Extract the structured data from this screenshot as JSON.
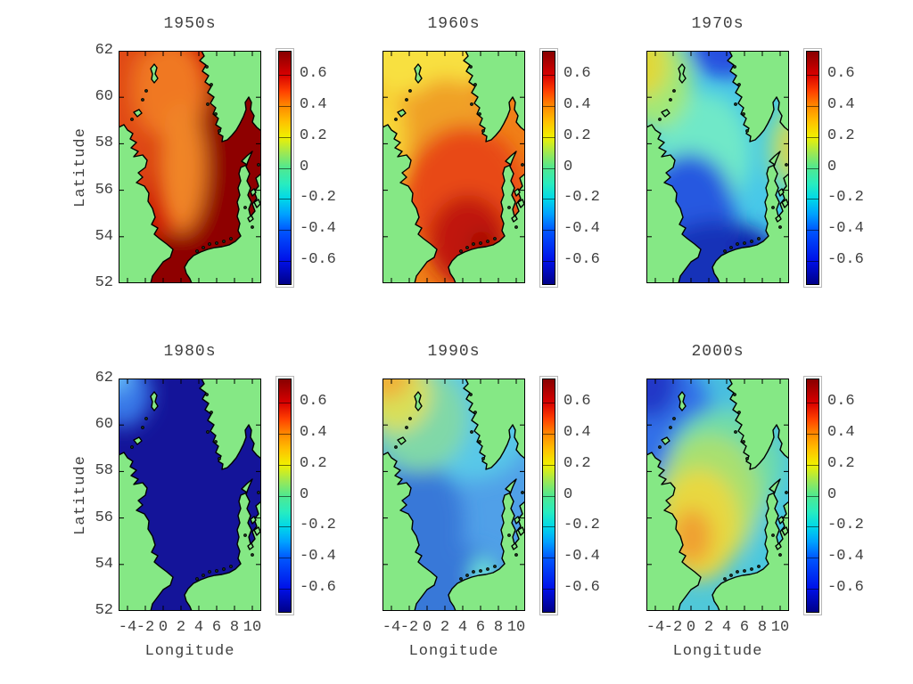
{
  "figure": {
    "background": "#ffffff",
    "description_visible_text_only": true
  },
  "colors": {
    "land": "#85e885",
    "coast": "#000000",
    "frame": "#000000",
    "text": "#404040",
    "background": "#ffffff"
  },
  "axes": {
    "xlabel": "Longitude",
    "ylabel": "Latitude",
    "x_tick_labels": [
      "-4",
      "-2",
      "0",
      "2",
      "4",
      "6",
      "8",
      "10"
    ],
    "y_tick_labels": [
      "62",
      "60",
      "58",
      "56",
      "54",
      "52"
    ]
  },
  "chart_data": {
    "type": "heatmap",
    "layout": "2 rows x 3 columns of decadal anomaly maps of the North Sea, each with its own identical colorbar",
    "xlabel": "Longitude",
    "ylabel": "Latitude",
    "x_ticks": [
      -4,
      -2,
      0,
      2,
      4,
      6,
      8,
      10
    ],
    "y_ticks": [
      62,
      60,
      58,
      56,
      54,
      52
    ],
    "lon_range": [
      -5,
      11
    ],
    "lat_range": [
      52,
      62
    ],
    "colorbar": {
      "range": [
        -0.75,
        0.75
      ],
      "tick_values": [
        0.6,
        0.4,
        0.2,
        0,
        -0.2,
        -0.4,
        -0.6
      ],
      "tick_labels": [
        "0.6",
        "0.4",
        "0.2",
        "0",
        "-0.2",
        "-0.4",
        "-0.6"
      ],
      "gradient_stops": [
        {
          "pos": 0.0,
          "color": "#000088"
        },
        {
          "pos": 0.1,
          "color": "#0010e8"
        },
        {
          "pos": 0.233,
          "color": "#0058ff"
        },
        {
          "pos": 0.3,
          "color": "#00a0ff"
        },
        {
          "pos": 0.367,
          "color": "#00d8e8"
        },
        {
          "pos": 0.43,
          "color": "#28ecc0"
        },
        {
          "pos": 0.5,
          "color": "#50e890"
        },
        {
          "pos": 0.56,
          "color": "#98e858"
        },
        {
          "pos": 0.633,
          "color": "#f0f000"
        },
        {
          "pos": 0.7,
          "color": "#ffc000"
        },
        {
          "pos": 0.767,
          "color": "#ff8800"
        },
        {
          "pos": 0.83,
          "color": "#ff4000"
        },
        {
          "pos": 0.9,
          "color": "#d80000"
        },
        {
          "pos": 1.0,
          "color": "#880000"
        }
      ]
    },
    "panels": [
      {
        "title": "1950s",
        "anomaly_pattern": "strong warm: dark red (>+0.6) along Norwegian Trench, east and south; orange (~+0.35) band in central/NW North Sea",
        "base": "#c81400",
        "layers": [
          {
            "color": "#8e0000",
            "cx": 0.95,
            "cy": 0.52,
            "rx": 0.45,
            "ry": 0.5
          },
          {
            "color": "#8e0000",
            "cx": 0.52,
            "cy": 1.02,
            "rx": 0.42,
            "ry": 0.26
          },
          {
            "color": "#e04818",
            "cx": 0.02,
            "cy": 0.3,
            "rx": 0.22,
            "ry": 0.45
          },
          {
            "color": "#f07820",
            "cx": 0.36,
            "cy": 0.16,
            "rx": 0.26,
            "ry": 0.22
          },
          {
            "color": "#f08428",
            "cx": 0.44,
            "cy": 0.5,
            "rx": 0.17,
            "ry": 0.28
          }
        ]
      },
      {
        "title": "1960s",
        "anomaly_pattern": "warm: yellow (~+0.2) in north, orange (~+0.4) centre, red to dark red (+0.5 to +0.7) in southern North Sea and German Bight",
        "base": "#f08018",
        "layers": [
          {
            "color": "#f8e040",
            "cx": 0.28,
            "cy": -0.02,
            "rx": 0.55,
            "ry": 0.22
          },
          {
            "color": "#f8d838",
            "cx": 0.02,
            "cy": 0.38,
            "rx": 0.16,
            "ry": 0.22
          },
          {
            "color": "#f0a028",
            "cx": 0.45,
            "cy": 0.32,
            "rx": 0.3,
            "ry": 0.2
          },
          {
            "color": "#e84818",
            "cx": 0.58,
            "cy": 0.62,
            "rx": 0.42,
            "ry": 0.3
          },
          {
            "color": "#c01808",
            "cx": 0.6,
            "cy": 0.82,
            "rx": 0.28,
            "ry": 0.2
          },
          {
            "color": "#a01004",
            "cx": 0.7,
            "cy": 0.84,
            "rx": 0.09,
            "ry": 0.07
          }
        ]
      },
      {
        "title": "1970s",
        "anomaly_pattern": "cool: cyan (~-0.2) over most of basin, yellow (~+0.2) NW corner and Skagerrak edge, dark blue (<-0.5) in southern North Sea and off Norway",
        "base": "#48c8e8",
        "layers": [
          {
            "color": "#70e8c8",
            "cx": 0.4,
            "cy": 0.44,
            "rx": 0.33,
            "ry": 0.26
          },
          {
            "color": "#2850e0",
            "cx": 0.55,
            "cy": -0.04,
            "rx": 0.26,
            "ry": 0.16
          },
          {
            "color": "#2858e0",
            "cx": 0.3,
            "cy": 0.7,
            "rx": 0.32,
            "ry": 0.26
          },
          {
            "color": "#1830b8",
            "cx": 0.5,
            "cy": 1.0,
            "rx": 0.52,
            "ry": 0.27
          },
          {
            "color": "#101ca8",
            "cx": 0.72,
            "cy": 0.84,
            "rx": 0.09,
            "ry": 0.07
          },
          {
            "color": "#a0e878",
            "cx": 0.06,
            "cy": 0.13,
            "rx": 0.26,
            "ry": 0.21
          },
          {
            "color": "#e0d838",
            "cx": -0.02,
            "cy": 0.06,
            "rx": 0.17,
            "ry": 0.14
          },
          {
            "color": "#90e488",
            "cx": 1.02,
            "cy": 0.42,
            "rx": 0.17,
            "ry": 0.19
          },
          {
            "color": "#d8d048",
            "cx": 1.03,
            "cy": 0.42,
            "rx": 0.1,
            "ry": 0.11
          }
        ]
      },
      {
        "title": "1980s",
        "anomaly_pattern": "very cold: uniform dark navy (<-0.7) everywhere except lighter blue patch at NW corner",
        "base": "#141499",
        "layers": [
          {
            "color": "#3878e8",
            "cx": 0.03,
            "cy": 0.06,
            "rx": 0.2,
            "ry": 0.15
          },
          {
            "color": "#68c0f8",
            "cx": -0.02,
            "cy": -0.02,
            "rx": 0.1,
            "ry": 0.08
          }
        ]
      },
      {
        "title": "1990s",
        "anomaly_pattern": "mild cool: light blue (~-0.3) basin-wide, yellow-orange (~+0.3) NW corner grading through green, light cyan patch off Denmark",
        "base": "#50a0e8",
        "layers": [
          {
            "color": "#58c8e8",
            "cx": 0.62,
            "cy": 0.16,
            "rx": 0.45,
            "ry": 0.28
          },
          {
            "color": "#3878d8",
            "cx": 0.27,
            "cy": 0.62,
            "rx": 0.3,
            "ry": 0.26
          },
          {
            "color": "#3878d8",
            "cx": 0.52,
            "cy": 0.94,
            "rx": 0.42,
            "ry": 0.22
          },
          {
            "color": "#80d8a8",
            "cx": 0.26,
            "cy": 0.17,
            "rx": 0.34,
            "ry": 0.23
          },
          {
            "color": "#d8e058",
            "cx": 0.1,
            "cy": 0.07,
            "rx": 0.24,
            "ry": 0.16
          },
          {
            "color": "#f0b038",
            "cx": 0.03,
            "cy": -0.02,
            "rx": 0.17,
            "ry": 0.11
          },
          {
            "color": "#70e8d8",
            "cx": 0.71,
            "cy": 0.84,
            "rx": 0.09,
            "ry": 0.07
          }
        ]
      },
      {
        "title": "2000s",
        "anomaly_pattern": "mixed: blue (~-0.4) NW, cyan east, green-yellow centre, orange core (~+0.35) in west-central North Sea",
        "base": "#50c8d8",
        "layers": [
          {
            "color": "#48c0e0",
            "cx": 0.65,
            "cy": 0.1,
            "rx": 0.45,
            "ry": 0.25
          },
          {
            "color": "#48c8e0",
            "cx": 0.98,
            "cy": 0.72,
            "rx": 0.22,
            "ry": 0.35
          },
          {
            "color": "#3070e8",
            "cx": 0.12,
            "cy": 0.16,
            "rx": 0.34,
            "ry": 0.26
          },
          {
            "color": "#2238c8",
            "cx": 0.02,
            "cy": 0.02,
            "rx": 0.2,
            "ry": 0.15
          },
          {
            "color": "#70dca8",
            "cx": 0.55,
            "cy": 0.38,
            "rx": 0.4,
            "ry": 0.25
          },
          {
            "color": "#a8e070",
            "cx": 0.44,
            "cy": 0.52,
            "rx": 0.36,
            "ry": 0.28
          },
          {
            "color": "#e8d840",
            "cx": 0.37,
            "cy": 0.63,
            "rx": 0.28,
            "ry": 0.24
          },
          {
            "color": "#f0a030",
            "cx": 0.32,
            "cy": 0.68,
            "rx": 0.14,
            "ry": 0.12
          }
        ]
      }
    ]
  }
}
